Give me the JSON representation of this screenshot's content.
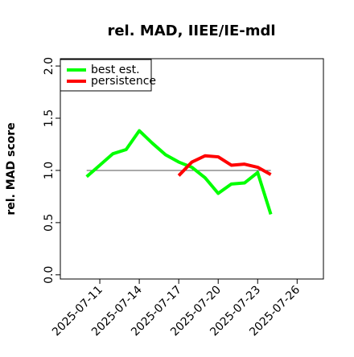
{
  "chart_data": {
    "type": "line",
    "title": "rel. MAD, IIEE/IE-mdl",
    "y_label": "rel. MAD score",
    "x": [
      "2025-07-10",
      "2025-07-11",
      "2025-07-12",
      "2025-07-13",
      "2025-07-14",
      "2025-07-15",
      "2025-07-16",
      "2025-07-17",
      "2025-07-18",
      "2025-07-19",
      "2025-07-20",
      "2025-07-21",
      "2025-07-22",
      "2025-07-23",
      "2025-07-24"
    ],
    "series": [
      {
        "name": "best est.",
        "color": "#00ff00",
        "values": [
          0.94,
          1.05,
          1.16,
          1.2,
          1.38,
          1.26,
          1.15,
          1.08,
          1.03,
          0.93,
          0.78,
          0.87,
          0.88,
          0.98,
          0.58
        ]
      },
      {
        "name": "persistence",
        "color": "#ff0000",
        "values": [
          null,
          null,
          null,
          null,
          null,
          null,
          null,
          0.95,
          1.08,
          1.14,
          1.13,
          1.05,
          1.06,
          1.03,
          0.96
        ]
      }
    ],
    "reference_line": 1,
    "xlim": [
      "2025-07-08",
      "2025-07-28"
    ],
    "xticks": [
      "2025-07-11",
      "2025-07-14",
      "2025-07-17",
      "2025-07-20",
      "2025-07-23",
      "2025-07-26"
    ],
    "ylim": [
      -0.04,
      2.07
    ],
    "yticks": [
      {
        "value": 0,
        "label": "0.0"
      },
      0.5,
      {
        "value": 1,
        "label": "1.0"
      },
      1.5,
      {
        "value": 2,
        "label": "2.0"
      }
    ],
    "legend": "top-left"
  }
}
